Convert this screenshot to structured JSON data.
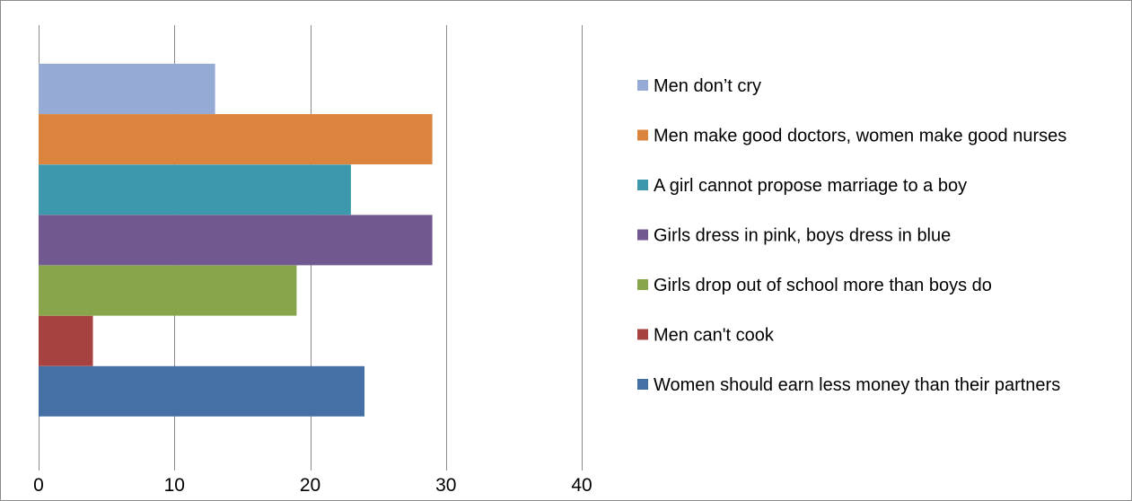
{
  "chart_data": {
    "type": "bar",
    "orientation": "horizontal",
    "title": "",
    "xlabel": "",
    "ylabel": "",
    "xlim": [
      0,
      40
    ],
    "xticks": [
      "0",
      "10",
      "20",
      "30",
      "40"
    ],
    "grid": true,
    "legend_position": "right",
    "series": [
      {
        "name": "Women should earn less money than their partners",
        "value": 24,
        "color": "#4470a6"
      },
      {
        "name": "Men can't cook",
        "value": 4,
        "color": "#a64340"
      },
      {
        "name": "Girls drop out of school more than boys do",
        "value": 19,
        "color": "#88a54b"
      },
      {
        "name": "Girls dress in pink, boys dress in blue",
        "value": 29,
        "color": "#715890"
      },
      {
        "name": "A girl cannot propose marriage to a boy",
        "value": 23,
        "color": "#3e98ad"
      },
      {
        "name": "Men make good doctors, women make good nurses",
        "value": 29,
        "color": "#db843d"
      },
      {
        "name": "Men don’t cry",
        "value": 13,
        "color": "#95abd5"
      }
    ]
  }
}
